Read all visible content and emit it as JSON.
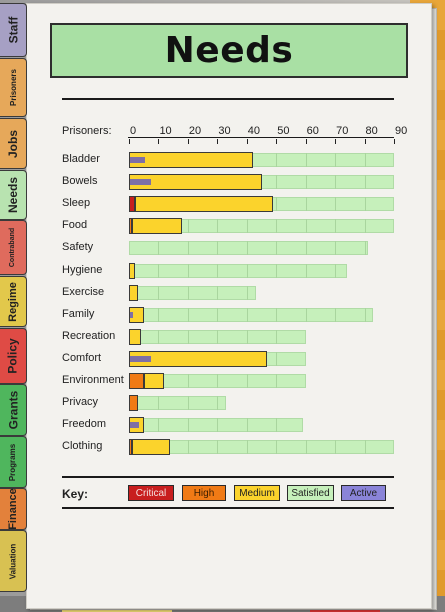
{
  "window": {
    "title": "Needs"
  },
  "tabs": [
    {
      "label": "Staff",
      "color": "#a6a0c4"
    },
    {
      "label": "Prisoners",
      "color": "#e6a85a"
    },
    {
      "label": "Jobs",
      "color": "#e6a85a"
    },
    {
      "label": "Needs",
      "color": "#b8e3b0"
    },
    {
      "label": "Contraband",
      "color": "#df6b5d"
    },
    {
      "label": "Regime",
      "color": "#e2c84b"
    },
    {
      "label": "Policy",
      "color": "#df4b45"
    },
    {
      "label": "Grants",
      "color": "#4fb65d"
    },
    {
      "label": "Programs",
      "color": "#4fb65d"
    },
    {
      "label": "Finance",
      "color": "#e3813b"
    },
    {
      "label": "Valuation",
      "color": "#d8c152"
    }
  ],
  "chart": {
    "x_label": "Prisoners:",
    "ticks": [
      "0",
      "10",
      "20",
      "30",
      "40",
      "50",
      "60",
      "70",
      "80",
      "90"
    ],
    "xlim": [
      0,
      90
    ]
  },
  "chart_data": {
    "type": "bar",
    "orientation": "horizontal",
    "categories": [
      "Bladder",
      "Bowels",
      "Sleep",
      "Food",
      "Safety",
      "Hygiene",
      "Exercise",
      "Family",
      "Recreation",
      "Comfort",
      "Environment",
      "Privacy",
      "Freedom",
      "Clothing"
    ],
    "series": [
      {
        "name": "Critical",
        "values": [
          0,
          0,
          2,
          0,
          0,
          0,
          0,
          0,
          0,
          0,
          0,
          0,
          0,
          0
        ]
      },
      {
        "name": "High",
        "values": [
          0,
          0,
          0,
          1,
          0,
          0,
          0,
          0,
          0,
          0,
          5,
          3,
          0,
          1
        ]
      },
      {
        "name": "Medium",
        "values": [
          42,
          45,
          47,
          17,
          0,
          2,
          3,
          5,
          4,
          47,
          7,
          0,
          5,
          13
        ]
      },
      {
        "name": "Satisfied",
        "values": [
          48,
          45,
          41,
          72,
          81,
          72,
          40,
          78,
          56,
          13,
          48,
          30,
          54,
          76
        ]
      },
      {
        "name": "Active",
        "values": [
          5,
          7,
          0,
          0,
          0,
          0,
          0,
          1,
          0,
          7,
          0,
          0,
          3,
          0
        ]
      }
    ],
    "xlim": [
      0,
      90
    ]
  },
  "key": {
    "label": "Key:",
    "items": [
      {
        "label": "Critical",
        "color": "#c81e1e"
      },
      {
        "label": "High",
        "color": "#f07a15"
      },
      {
        "label": "Medium",
        "color": "#fbd32c"
      },
      {
        "label": "Satisfied",
        "color": "#c6f0bb"
      },
      {
        "label": "Active",
        "color": "#8a84d8"
      }
    ]
  },
  "colors": {
    "critical": "#c81e1e",
    "high": "#f07a15",
    "medium": "#fbd32c",
    "satisfied": "#c6f0bb",
    "active": "#7e6fa6"
  }
}
